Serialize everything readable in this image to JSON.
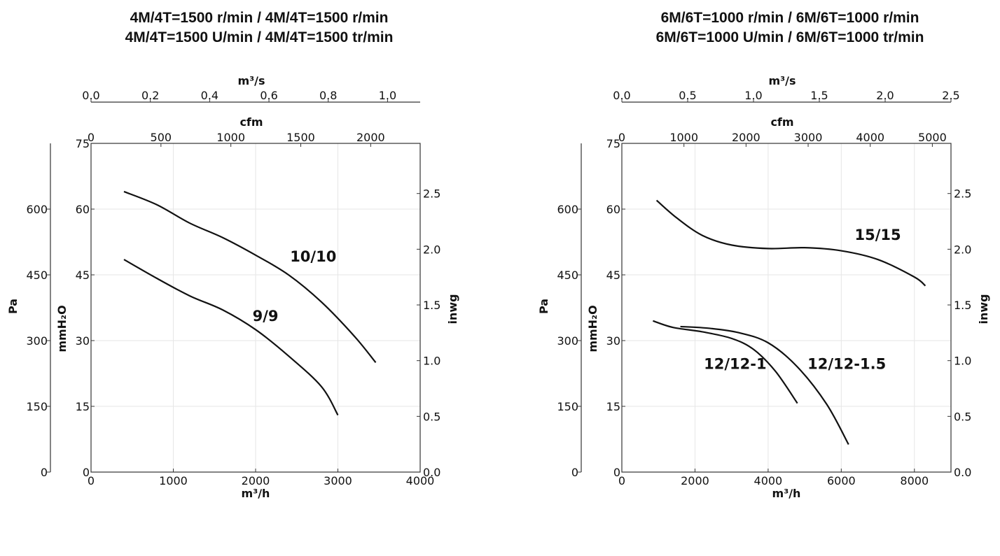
{
  "charts_titles": {
    "left": [
      "4M/4T=1500 r/min / 4M/4T=1500 r/min",
      "4M/4T=1500 U/min / 4M/4T=1500 tr/min"
    ],
    "right": [
      "6M/6T=1000 r/min / 6M/6T=1000 r/min",
      "6M/6T=1000 U/min / 6M/6T=1000 tr/min"
    ]
  },
  "chart_data": [
    {
      "type": "line",
      "title": "4M/4T=1500 r/min / 4M/4T=1500 r/min\n4M/4T=1500 U/min / 4M/4T=1500 tr/min",
      "xlabel": "m³/h",
      "ylabel": "mmH₂O",
      "xlim": [
        0,
        4000
      ],
      "ylim": [
        0,
        75
      ],
      "grid": true,
      "axes": {
        "bottom": {
          "label": "m³/h",
          "ticks": [
            "0",
            "1000",
            "2000",
            "3000",
            "4000"
          ],
          "values": [
            0,
            1000,
            2000,
            3000,
            4000
          ]
        },
        "top_cfm": {
          "label": "cfm",
          "ticks": [
            "0",
            "500",
            "1000",
            "1500",
            "2000"
          ],
          "values": [
            0,
            500,
            1000,
            1500,
            2000
          ]
        },
        "top_m3s": {
          "label": "m³/s",
          "ticks": [
            "0.0",
            "0.2",
            "0.4",
            "0.6",
            "0.8",
            "1.0"
          ],
          "values": [
            0,
            0.2,
            0.4,
            0.6,
            0.8,
            1.0
          ]
        },
        "left_mmh2o": {
          "label": "mmH₂O",
          "ticks": [
            "0",
            "15",
            "30",
            "45",
            "60",
            "75"
          ],
          "values": [
            0,
            15,
            30,
            45,
            60,
            75
          ]
        },
        "left_pa": {
          "label": "Pa",
          "ticks": [
            "0",
            "150",
            "300",
            "450",
            "600"
          ],
          "values": [
            0,
            150,
            300,
            450,
            600
          ]
        },
        "right_inwg": {
          "label": "inwg",
          "ticks": [
            "0.0",
            "0.5",
            "1.0",
            "1.5",
            "2.0",
            "2.5"
          ],
          "values": [
            0,
            0.5,
            1.0,
            1.5,
            2.0,
            2.5
          ]
        }
      },
      "series": [
        {
          "name": "10/10",
          "label_at": [
            2700,
            48
          ],
          "points": [
            [
              400,
              64
            ],
            [
              800,
              61
            ],
            [
              1200,
              56.8
            ],
            [
              1600,
              53.5
            ],
            [
              2000,
              49.5
            ],
            [
              2400,
              45
            ],
            [
              2800,
              38.8
            ],
            [
              3200,
              31
            ],
            [
              3460,
              25
            ]
          ]
        },
        {
          "name": "9/9",
          "label_at": [
            2120,
            34.5
          ],
          "points": [
            [
              400,
              48.5
            ],
            [
              800,
              44.2
            ],
            [
              1200,
              40.2
            ],
            [
              1600,
              37
            ],
            [
              2000,
              32.5
            ],
            [
              2400,
              26.5
            ],
            [
              2800,
              19.5
            ],
            [
              3000,
              13
            ]
          ]
        }
      ]
    },
    {
      "type": "line",
      "title": "6M/6T=1000 r/min / 6M/6T=1000 r/min\n6M/6T=1000 U/min / 6M/6T=1000 tr/min",
      "xlabel": "m³/h",
      "ylabel": "mmH₂O",
      "xlim": [
        0,
        9000
      ],
      "ylim": [
        0,
        75
      ],
      "grid": true,
      "axes": {
        "bottom": {
          "label": "m³/h",
          "ticks": [
            "0",
            "2000",
            "4000",
            "6000",
            "8000"
          ],
          "values": [
            0,
            2000,
            4000,
            6000,
            8000
          ]
        },
        "top_cfm": {
          "label": "cfm",
          "ticks": [
            "0",
            "1000",
            "2000",
            "3000",
            "4000",
            "5000"
          ],
          "values": [
            0,
            1000,
            2000,
            3000,
            4000,
            5000
          ]
        },
        "top_m3s": {
          "label": "m³/s",
          "ticks": [
            "0.0",
            "0.5",
            "1.0",
            "1.5",
            "2.0",
            "2.5"
          ],
          "values": [
            0,
            0.5,
            1.0,
            1.5,
            2.0,
            2.5
          ]
        },
        "left_mmh2o": {
          "label": "mmH₂O",
          "ticks": [
            "0",
            "15",
            "30",
            "45",
            "60",
            "75"
          ],
          "values": [
            0,
            15,
            30,
            45,
            60,
            75
          ]
        },
        "left_pa": {
          "label": "Pa",
          "ticks": [
            "0",
            "150",
            "300",
            "450",
            "600"
          ],
          "values": [
            0,
            150,
            300,
            450,
            600
          ]
        },
        "right_inwg": {
          "label": "inwg",
          "ticks": [
            "0.0",
            "0.5",
            "1.0",
            "1.5",
            "2.0",
            "2.5"
          ],
          "values": [
            0,
            0.5,
            1.0,
            1.5,
            2.0,
            2.5
          ]
        }
      },
      "series": [
        {
          "name": "15/15",
          "label_at": [
            7000,
            53
          ],
          "points": [
            [
              950,
              62
            ],
            [
              1500,
              58
            ],
            [
              2200,
              54
            ],
            [
              3000,
              51.8
            ],
            [
              4000,
              51
            ],
            [
              5000,
              51.2
            ],
            [
              6000,
              50.5
            ],
            [
              7000,
              48.5
            ],
            [
              8000,
              44.5
            ],
            [
              8300,
              42.5
            ]
          ]
        },
        {
          "name": "12/12-1",
          "label_at": [
            3100,
            23.5
          ],
          "points": [
            [
              850,
              34.5
            ],
            [
              1400,
              33
            ],
            [
              2200,
              32
            ],
            [
              3000,
              30.5
            ],
            [
              3600,
              28
            ],
            [
              4200,
              23
            ],
            [
              4800,
              15.7
            ]
          ]
        },
        {
          "name": "12/12-1.5",
          "label_at": [
            6150,
            23.5
          ],
          "points": [
            [
              1600,
              33.2
            ],
            [
              2400,
              32.8
            ],
            [
              3200,
              31.8
            ],
            [
              4000,
              29.5
            ],
            [
              4800,
              24
            ],
            [
              5600,
              15.5
            ],
            [
              6200,
              6.3
            ]
          ]
        }
      ]
    }
  ]
}
